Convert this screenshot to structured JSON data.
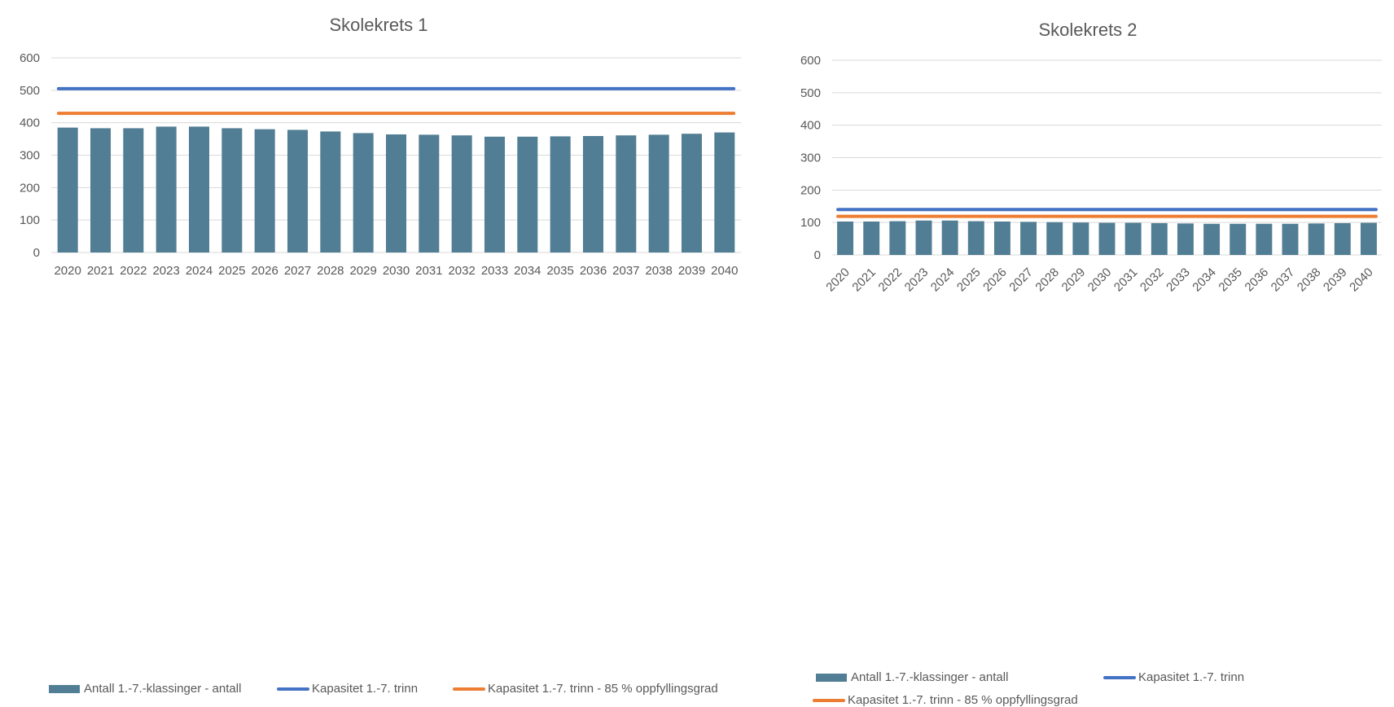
{
  "chart_data": [
    {
      "type": "bar",
      "title": "Skolekrets 1",
      "categories": [
        "2020",
        "2021",
        "2022",
        "2023",
        "2024",
        "2025",
        "2026",
        "2027",
        "2028",
        "2029",
        "2030",
        "2031",
        "2032",
        "2033",
        "2034",
        "2035",
        "2036",
        "2037",
        "2038",
        "2039",
        "2040"
      ],
      "series": [
        {
          "name": "Antall 1.-7.-klassinger - antall",
          "kind": "bar",
          "color": "#517e94",
          "values": [
            385,
            383,
            383,
            388,
            388,
            383,
            380,
            378,
            373,
            368,
            364,
            363,
            361,
            357,
            357,
            358,
            359,
            361,
            363,
            366,
            370
          ]
        },
        {
          "name": "Kapasitet 1.-7. trinn",
          "kind": "line",
          "color": "#4472c4",
          "values": [
            505,
            505,
            505,
            505,
            505,
            505,
            505,
            505,
            505,
            505,
            505,
            505,
            505,
            505,
            505,
            505,
            505,
            505,
            505,
            505,
            505
          ]
        },
        {
          "name": "Kapasitet 1.-7. trinn - 85 % oppfyllingsgrad",
          "kind": "line",
          "color": "#ed7d31",
          "values": [
            429,
            429,
            429,
            429,
            429,
            429,
            429,
            429,
            429,
            429,
            429,
            429,
            429,
            429,
            429,
            429,
            429,
            429,
            429,
            429,
            429
          ]
        }
      ],
      "yticks": [
        "0",
        "100",
        "200",
        "300",
        "400",
        "500",
        "600"
      ],
      "ylim": [
        0,
        600
      ],
      "grid": true,
      "legend": "bottom"
    },
    {
      "type": "bar",
      "title": "Skolekrets 2",
      "categories": [
        "2020",
        "2021",
        "2022",
        "2023",
        "2024",
        "2025",
        "2026",
        "2027",
        "2028",
        "2029",
        "2030",
        "2031",
        "2032",
        "2033",
        "2034",
        "2035",
        "2036",
        "2037",
        "2038",
        "2039",
        "2040"
      ],
      "series": [
        {
          "name": "Antall 1.-7.-klassinger - antall",
          "kind": "bar",
          "color": "#517e94",
          "values": [
            103,
            103,
            104,
            106,
            106,
            104,
            103,
            102,
            101,
            100,
            99,
            99,
            98,
            97,
            96,
            96,
            96,
            96,
            97,
            98,
            99
          ]
        },
        {
          "name": "Kapasitet 1.-7. trinn",
          "kind": "line",
          "color": "#4472c4",
          "values": [
            140,
            140,
            140,
            140,
            140,
            140,
            140,
            140,
            140,
            140,
            140,
            140,
            140,
            140,
            140,
            140,
            140,
            140,
            140,
            140,
            140
          ]
        },
        {
          "name": "Kapasitet 1.-7. trinn - 85 % oppfyllingsgrad",
          "kind": "line",
          "color": "#ed7d31",
          "values": [
            119,
            119,
            119,
            119,
            119,
            119,
            119,
            119,
            119,
            119,
            119,
            119,
            119,
            119,
            119,
            119,
            119,
            119,
            119,
            119,
            119
          ]
        }
      ],
      "yticks": [
        "0",
        "100",
        "200",
        "300",
        "400",
        "500",
        "600"
      ],
      "ylim": [
        0,
        600
      ],
      "grid": true,
      "legend": "bottom"
    }
  ]
}
